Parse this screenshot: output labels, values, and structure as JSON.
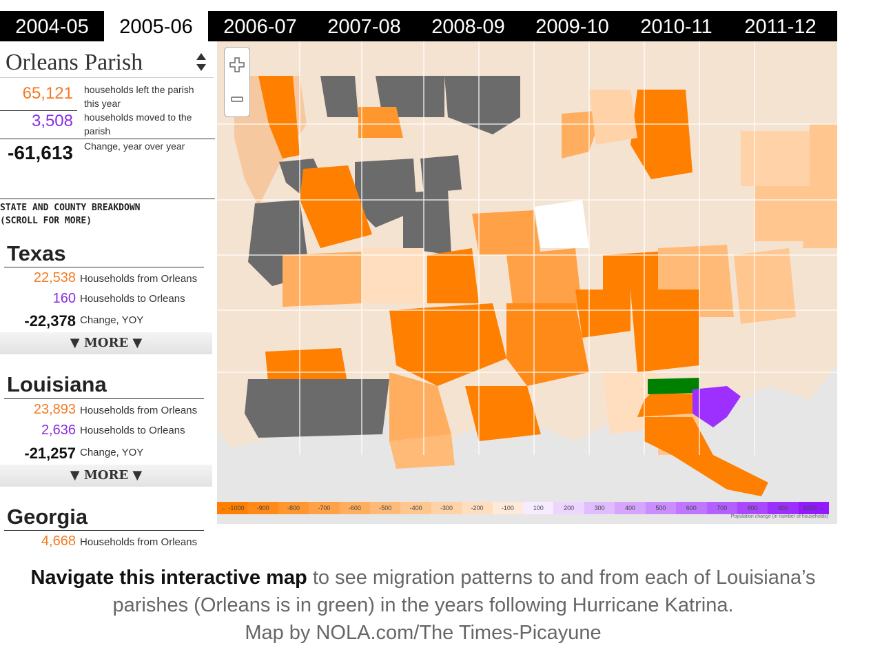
{
  "tabs": [
    "2004-05",
    "2005-06",
    "2006-07",
    "2007-08",
    "2008-09",
    "2009-10",
    "2010-11",
    "2011-12"
  ],
  "active_tab": 1,
  "selector": {
    "value": "Orleans Parish"
  },
  "summary": {
    "left": {
      "value": "65,121",
      "text": "households left the parish this year"
    },
    "moved": {
      "value": "3,508",
      "text": "households moved to the parish"
    },
    "change": {
      "value": "-61,613",
      "text": "Change, year over year"
    }
  },
  "breakdown": {
    "line1": "STATE AND COUNTY BREAKDOWN",
    "line2": "(SCROLL FOR MORE)"
  },
  "states": [
    {
      "name": "Texas",
      "from_value": "22,538",
      "from_label": "Households from Orleans",
      "to_value": "160",
      "to_label": "Households to Orleans",
      "change_value": "-22,378",
      "change_label": "Change, YOY",
      "more": "▼ MORE ▼"
    },
    {
      "name": "Louisiana",
      "from_value": "23,893",
      "from_label": "Households from Orleans",
      "to_value": "2,636",
      "to_label": "Households to Orleans",
      "change_value": "-21,257",
      "change_label": "Change, YOY",
      "more": "▼ MORE ▼"
    },
    {
      "name": "Georgia",
      "from_value": "4,668",
      "from_label": "Households from Orleans"
    }
  ],
  "legend": {
    "labels": [
      "← -1000",
      "-900",
      "-800",
      "-700",
      "-600",
      "-500",
      "-400",
      "-300",
      "-200",
      "-100",
      "100",
      "200",
      "300",
      "400",
      "500",
      "600",
      "700",
      "800",
      "900",
      "1000 →"
    ],
    "colors": [
      "#ff7f00",
      "#ff8a17",
      "#ff962e",
      "#ffa247",
      "#ffae5f",
      "#ffba78",
      "#ffc690",
      "#ffd2a8",
      "#ffdec0",
      "#ffeada",
      "#f7ecff",
      "#ecd5ff",
      "#e1bdff",
      "#d6a6ff",
      "#cb8eff",
      "#c077ff",
      "#b45fff",
      "#a948ff",
      "#9e30ff",
      "#9319ff"
    ],
    "caption": "Population change (in number of households)"
  },
  "map_colors": {
    "orleans": "#008000",
    "gray": "#6b6b6b",
    "water": "#e6e6e6"
  },
  "caption": {
    "bold": "Navigate this interactive map",
    "line1": " to see migration patterns to and from each of Louisiana’s",
    "line2": "parishes (Orleans is in green) in the years following Hurricane Katrina.",
    "line3": "Map by NOLA.com/The Times-Picayune"
  }
}
